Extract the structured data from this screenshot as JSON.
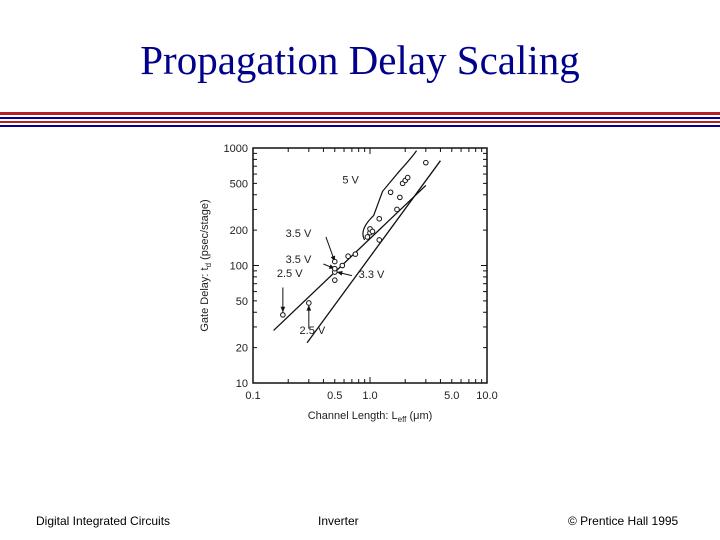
{
  "slide": {
    "title": "Propagation Delay Scaling",
    "footer_left": "Digital Integrated Circuits",
    "footer_center": "Inverter",
    "footer_right": "© Prentice Hall 1995"
  },
  "colors": {
    "title": "#00008b",
    "rule_red": "#b22222",
    "rule_blue": "#00008b"
  },
  "chart_data": {
    "type": "scatter",
    "title": "",
    "xlabel": "Channel Length: L",
    "xlabel_sub": "eff",
    "xlabel_unit": "(μm)",
    "ylabel": "Gate Delay: t",
    "ylabel_sub": "d",
    "ylabel_unit": "(psec/stage)",
    "x_scale": "log",
    "y_scale": "log",
    "xlim": [
      0.1,
      10.0
    ],
    "ylim": [
      10,
      1000
    ],
    "x_ticks": [
      {
        "value": 0.1,
        "label": "0.1"
      },
      {
        "value": 0.5,
        "label": "0.5"
      },
      {
        "value": 1.0,
        "label": "1.0"
      },
      {
        "value": 5.0,
        "label": "5.0"
      },
      {
        "value": 10.0,
        "label": "10.0"
      }
    ],
    "y_ticks": [
      {
        "value": 10,
        "label": "10"
      },
      {
        "value": 20,
        "label": "20"
      },
      {
        "value": 50,
        "label": "50"
      },
      {
        "value": 100,
        "label": "100"
      },
      {
        "value": 200,
        "label": "200"
      },
      {
        "value": 500,
        "label": "500"
      },
      {
        "value": 1000,
        "label": "1000"
      }
    ],
    "points": [
      {
        "x": 0.18,
        "y": 38
      },
      {
        "x": 0.3,
        "y": 48
      },
      {
        "x": 0.5,
        "y": 75
      },
      {
        "x": 0.5,
        "y": 88
      },
      {
        "x": 0.5,
        "y": 94
      },
      {
        "x": 0.5,
        "y": 108
      },
      {
        "x": 0.58,
        "y": 100
      },
      {
        "x": 0.65,
        "y": 120
      },
      {
        "x": 0.75,
        "y": 125
      },
      {
        "x": 0.95,
        "y": 175
      },
      {
        "x": 1.0,
        "y": 190
      },
      {
        "x": 1.0,
        "y": 205
      },
      {
        "x": 1.05,
        "y": 195
      },
      {
        "x": 1.2,
        "y": 165
      },
      {
        "x": 1.2,
        "y": 250
      },
      {
        "x": 1.5,
        "y": 420
      },
      {
        "x": 1.7,
        "y": 300
      },
      {
        "x": 1.8,
        "y": 380
      },
      {
        "x": 1.9,
        "y": 500
      },
      {
        "x": 2.0,
        "y": 530
      },
      {
        "x": 2.1,
        "y": 560
      },
      {
        "x": 3.0,
        "y": 750
      }
    ],
    "trend_lines": [
      {
        "name": "lower-bound",
        "from": {
          "x": 0.15,
          "y": 28
        },
        "to": {
          "x": 3.0,
          "y": 480
        }
      },
      {
        "name": "upper-bound",
        "from": {
          "x": 0.29,
          "y": 22
        },
        "to": {
          "x": 4.0,
          "y": 780
        }
      }
    ],
    "annotations": [
      {
        "text": "5 V",
        "x": 0.58,
        "y": 500
      },
      {
        "text": "3.5 V",
        "x": 0.19,
        "y": 175
      },
      {
        "text": "3.5 V",
        "x": 0.19,
        "y": 105
      },
      {
        "text": "2.5 V",
        "x": 0.16,
        "y": 80
      },
      {
        "text": "3.3 V",
        "x": 0.8,
        "y": 78
      },
      {
        "text": "2.5 V",
        "x": 0.25,
        "y": 26
      }
    ],
    "arrows": [
      {
        "from": {
          "x": 0.42,
          "y": 175
        },
        "to": {
          "x": 0.5,
          "y": 108
        }
      },
      {
        "from": {
          "x": 0.4,
          "y": 103
        },
        "to": {
          "x": 0.5,
          "y": 94
        }
      },
      {
        "from": {
          "x": 0.7,
          "y": 82
        },
        "to": {
          "x": 0.52,
          "y": 88
        }
      },
      {
        "from": {
          "x": 0.18,
          "y": 65
        },
        "to": {
          "x": 0.18,
          "y": 40
        }
      },
      {
        "from": {
          "x": 0.3,
          "y": 29
        },
        "to": {
          "x": 0.3,
          "y": 46
        }
      }
    ],
    "bracket": {
      "label": "5 V",
      "from": {
        "x": 0.9,
        "y": 165
      },
      "to": {
        "x": 2.5,
        "y": 950
      }
    }
  }
}
